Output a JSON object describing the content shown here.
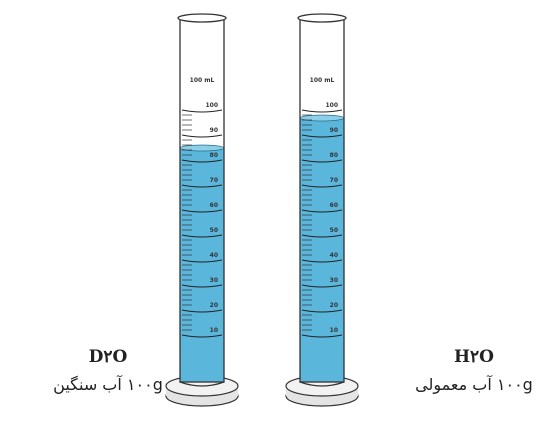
{
  "cylinders": [
    {
      "formula": "D۲O",
      "caption": "۱۰۰g آب سنگین",
      "scale_label": "100 mL",
      "graduations": [
        "100",
        "90",
        "80",
        "70",
        "60",
        "50",
        "40",
        "30",
        "20",
        "10"
      ]
    },
    {
      "formula": "H۲O",
      "caption": "۱۰۰g آب معمولی",
      "scale_label": "100 mL",
      "graduations": [
        "100",
        "90",
        "80",
        "70",
        "60",
        "50",
        "40",
        "30",
        "20",
        "10"
      ]
    }
  ]
}
